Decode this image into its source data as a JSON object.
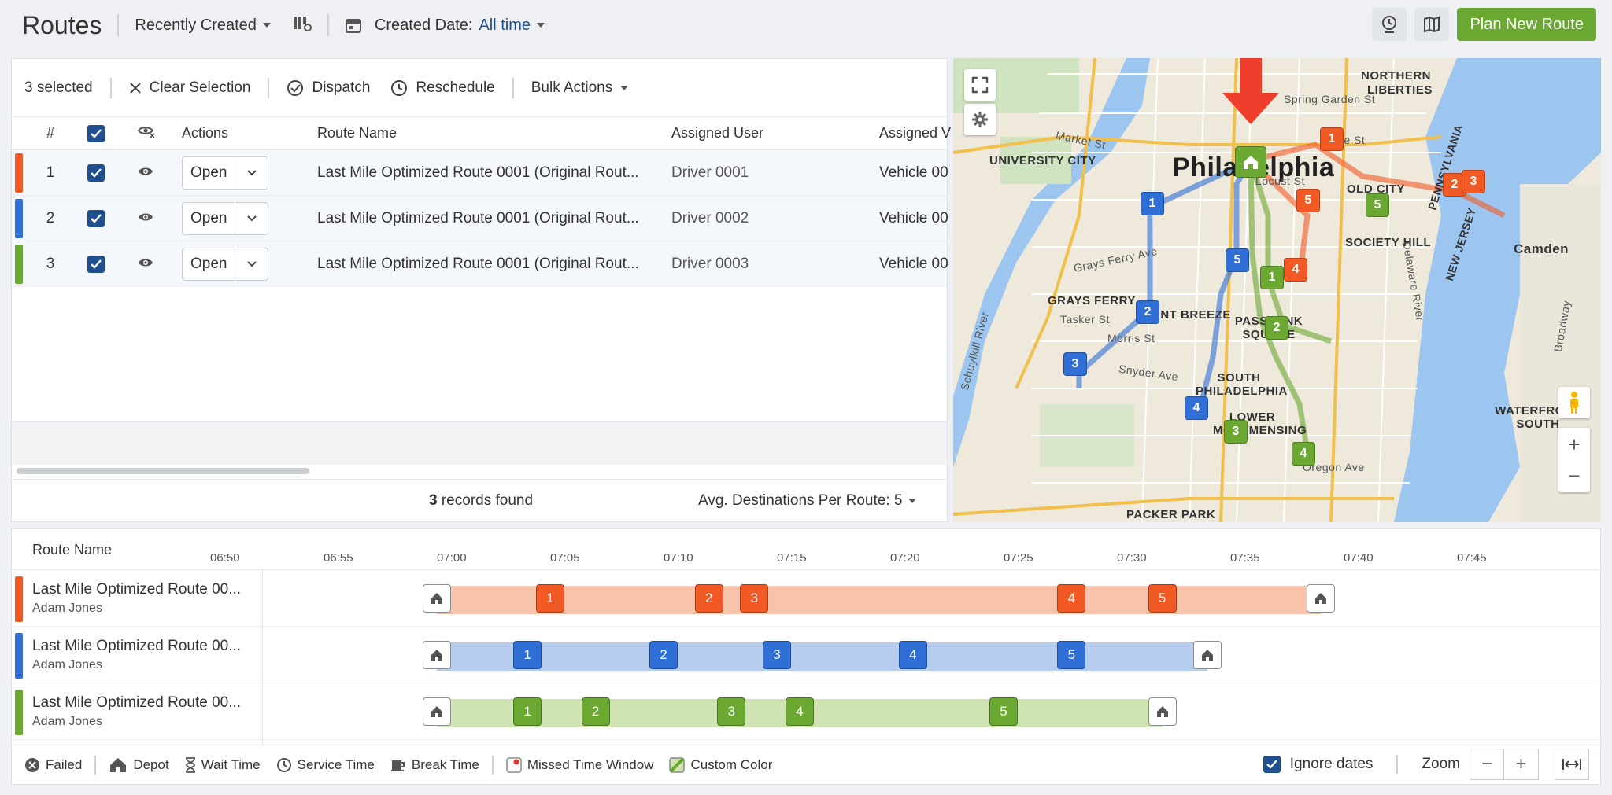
{
  "header": {
    "title": "Routes",
    "sort_label": "Recently Created",
    "date_label": "Created Date:",
    "date_value": "All time",
    "plan_button": "Plan New Route"
  },
  "selection": {
    "count_label": "3 selected",
    "clear": "Clear Selection",
    "dispatch": "Dispatch",
    "reschedule": "Reschedule",
    "bulk": "Bulk Actions"
  },
  "table": {
    "headers": {
      "num": "#",
      "actions": "Actions",
      "route_name": "Route Name",
      "assigned_user": "Assigned User",
      "assigned_vehicle": "Assigned V"
    },
    "rows": [
      {
        "num": "1",
        "color": "#f15a24",
        "open": "Open",
        "name": "Last Mile Optimized Route 0001 (Original Rout...",
        "user": "Driver 0001",
        "vehicle": "Vehicle 00"
      },
      {
        "num": "2",
        "color": "#2f6fd6",
        "open": "Open",
        "name": "Last Mile Optimized Route 0001 (Original Rout...",
        "user": "Driver 0002",
        "vehicle": "Vehicle 00"
      },
      {
        "num": "3",
        "color": "#6aa832",
        "open": "Open",
        "name": "Last Mile Optimized Route 0001 (Original Rout...",
        "user": "Driver 0003",
        "vehicle": "Vehicle 00"
      }
    ],
    "records_count": "3",
    "records_suffix": "records found",
    "avg_label": "Avg. Destinations Per Route: 5"
  },
  "map": {
    "labels": {
      "city": "Philadelphia",
      "northern": "NORTHERN",
      "liberties": "LIBERTIES",
      "univ": "UNIVERSITY CITY",
      "oldcity": "OLD CITY",
      "society": "SOCIETY HILL",
      "camden": "Camden",
      "grays": "GRAYS FERRY",
      "pointbreeze": "POINT BREEZE",
      "passyunk": "PASSYUNK SQUARE",
      "southphilly": "SOUTH PHILADELPHIA",
      "lowermoy": "LOWER MOYAMENSING",
      "waterfront": "WATERFRONT SOUTH",
      "packer": "PACKER PARK",
      "pennsylvania": "PENNSYLVANIA",
      "newjersey": "NEW JERSEY",
      "marketst": "Market St",
      "springgarden": "Spring Garden St",
      "racest": "Race St",
      "locustst": "Locust St",
      "graysferryave": "Grays Ferry Ave",
      "taskerst": "Tasker St",
      "morrisst": "Morris St",
      "oregonave": "Oregon Ave",
      "delawareriver": "Delaware River",
      "schuylkill": "Schuylkill River",
      "broadway": "Broadway",
      "snyderave": "Snyder Ave"
    }
  },
  "timeline": {
    "header_label": "Route Name",
    "ticks": [
      "06:50",
      "06:55",
      "07:00",
      "07:05",
      "07:10",
      "07:15",
      "07:20",
      "07:25",
      "07:30",
      "07:35",
      "07:40",
      "07:45"
    ],
    "routes": [
      {
        "name": "Last Mile Optimized Route 00...",
        "driver": "Adam Jones",
        "color": "#f15a24",
        "light": "#f8c3ab",
        "start": "07:00",
        "end": "07:39",
        "stops": [
          {
            "label": "1",
            "t": "07:05"
          },
          {
            "label": "2",
            "t": "07:12"
          },
          {
            "label": "3",
            "t": "07:14"
          },
          {
            "label": "4",
            "t": "07:28"
          },
          {
            "label": "5",
            "t": "07:32"
          }
        ]
      },
      {
        "name": "Last Mile Optimized Route 00...",
        "driver": "Adam Jones",
        "color": "#2f6fd6",
        "light": "#b7cdf0",
        "start": "07:00",
        "end": "07:34",
        "stops": [
          {
            "label": "1",
            "t": "07:04"
          },
          {
            "label": "2",
            "t": "07:10"
          },
          {
            "label": "3",
            "t": "07:15"
          },
          {
            "label": "4",
            "t": "07:21"
          },
          {
            "label": "5",
            "t": "07:28"
          }
        ]
      },
      {
        "name": "Last Mile Optimized Route 00...",
        "driver": "Adam Jones",
        "color": "#6aa832",
        "light": "#cfe3b3",
        "start": "07:00",
        "end": "07:32",
        "stops": [
          {
            "label": "1",
            "t": "07:04"
          },
          {
            "label": "2",
            "t": "07:07"
          },
          {
            "label": "3",
            "t": "07:13"
          },
          {
            "label": "4",
            "t": "07:16"
          },
          {
            "label": "5",
            "t": "07:25"
          }
        ]
      }
    ]
  },
  "legend": {
    "failed": "Failed",
    "depot": "Depot",
    "wait": "Wait Time",
    "service": "Service Time",
    "break": "Break Time",
    "missed": "Missed Time Window",
    "custom": "Custom Color",
    "ignore_dates": "Ignore dates",
    "zoom": "Zoom"
  }
}
